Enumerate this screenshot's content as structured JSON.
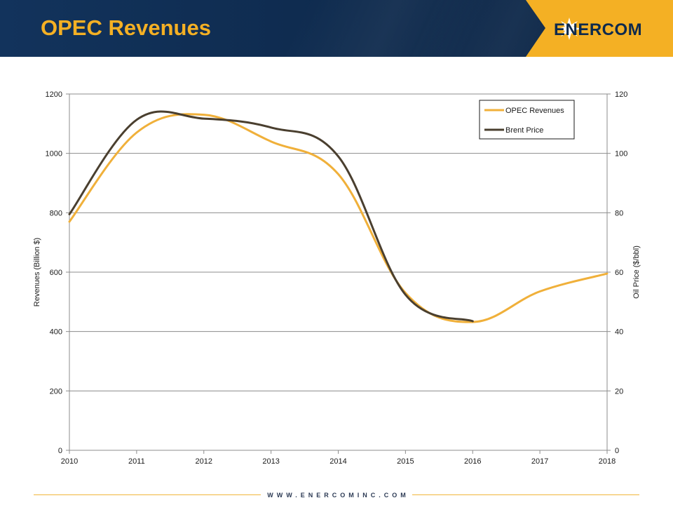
{
  "slide": {
    "title": "OPEC Revenues",
    "logo_text": "ENERCOM",
    "footer_url": "WWW.ENERCOMINC.COM",
    "colors": {
      "header_bg": "#0e2a4d",
      "title": "#f4b024",
      "logo_panel": "#f4b024",
      "logo_text": "#0e2a4d",
      "footer_line": "#f0b73a"
    }
  },
  "chart_data": {
    "type": "line",
    "title": "",
    "x": [
      2010,
      2011,
      2012,
      2013,
      2014,
      2015,
      2016,
      2017,
      2018
    ],
    "xlim": [
      2010,
      2018
    ],
    "ylabel": "Revenues (Billion $)",
    "ylim": [
      0,
      1200
    ],
    "yticks": [
      0,
      200,
      400,
      600,
      800,
      1000,
      1200
    ],
    "y2label": "Oil Price ($/bbl)",
    "y2lim": [
      0,
      120
    ],
    "y2ticks": [
      0,
      20,
      40,
      60,
      80,
      100,
      120
    ],
    "grid": true,
    "legend_position": "top-right",
    "series": [
      {
        "name": "OPEC Revenues",
        "axis": "left",
        "color": "#f0b03a",
        "values": [
          770,
          1070,
          1130,
          1040,
          930,
          530,
          432,
          535,
          595
        ]
      },
      {
        "name": "Brent Price",
        "axis": "right",
        "color": "#4a3f2f",
        "values": [
          79.5,
          111.3,
          111.7,
          108.7,
          99.0,
          52.4,
          43.5,
          null,
          null
        ]
      }
    ]
  }
}
